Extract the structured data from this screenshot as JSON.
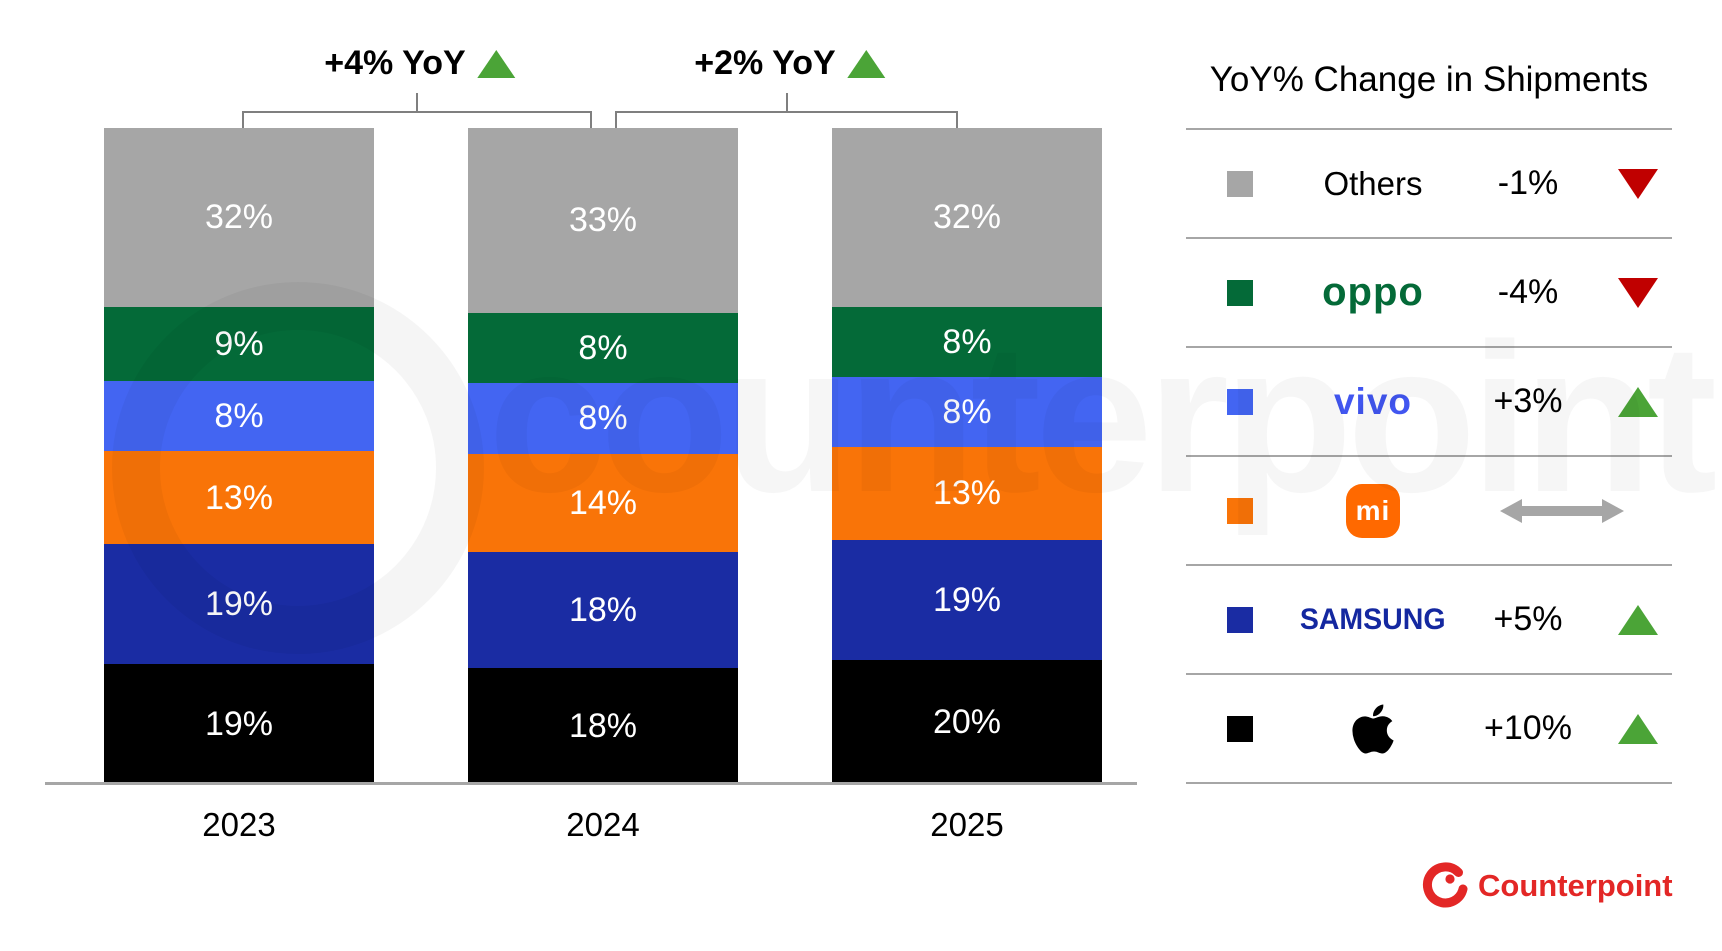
{
  "chart_data": {
    "type": "bar",
    "stacked": true,
    "unit": "%",
    "title": "",
    "categories": [
      "2023",
      "2024",
      "2025"
    ],
    "series": [
      {
        "name": "Apple",
        "key": "apple",
        "color": "#000000",
        "values": [
          19,
          18,
          20
        ]
      },
      {
        "name": "Samsung",
        "key": "samsung",
        "color": "#1a2ca3",
        "values": [
          19,
          18,
          19
        ]
      },
      {
        "name": "Xiaomi",
        "key": "xiaomi",
        "color": "#f97408",
        "values": [
          13,
          14,
          13
        ]
      },
      {
        "name": "vivo",
        "key": "vivo",
        "color": "#4365f2",
        "values": [
          8,
          8,
          8
        ]
      },
      {
        "name": "OPPO",
        "key": "oppo",
        "color": "#046a38",
        "values": [
          9,
          8,
          8
        ]
      },
      {
        "name": "Others",
        "key": "others",
        "color": "#a6a6a6",
        "values": [
          32,
          33,
          32
        ]
      }
    ],
    "ylim": [
      0,
      100
    ],
    "grid": false,
    "legend_position": "right",
    "annotations": [
      {
        "text": "+4% YoY",
        "direction": "up",
        "between": [
          "2023",
          "2024"
        ]
      },
      {
        "text": "+2% YoY",
        "direction": "up",
        "between": [
          "2024",
          "2025"
        ]
      }
    ]
  },
  "legend": {
    "title": "YoY% Change in Shipments",
    "rows": [
      {
        "brand": "Others",
        "key": "others",
        "swatch": "#a6a6a6",
        "change": "-1%",
        "direction": "down"
      },
      {
        "brand": "OPPO",
        "key": "oppo",
        "swatch": "#046a38",
        "change": "-4%",
        "direction": "down"
      },
      {
        "brand": "vivo",
        "key": "vivo",
        "swatch": "#4365f2",
        "change": "+3%",
        "direction": "up"
      },
      {
        "brand": "Xiaomi",
        "key": "xiaomi",
        "swatch": "#f97408",
        "change": "",
        "direction": "flat"
      },
      {
        "brand": "Samsung",
        "key": "samsung",
        "swatch": "#1a2ca3",
        "change": "+5%",
        "direction": "up"
      },
      {
        "brand": "Apple",
        "key": "apple",
        "swatch": "#000000",
        "change": "+10%",
        "direction": "up"
      }
    ],
    "logo_labels": {
      "others": "Others",
      "oppo": "oppo",
      "vivo": "vivo",
      "xiaomi": "mi",
      "samsung": "SAMSUNG"
    }
  },
  "branding": {
    "logo_text": "Counterpoint",
    "watermark_text": "counterpoint"
  },
  "colors": {
    "up_green": "#4ba437",
    "down_red": "#c00000",
    "flat_gray": "#a6a6a6",
    "axis_gray": "#a6a6a6",
    "bracket_gray": "#7f7f7f",
    "brand_red": "#e32726"
  }
}
